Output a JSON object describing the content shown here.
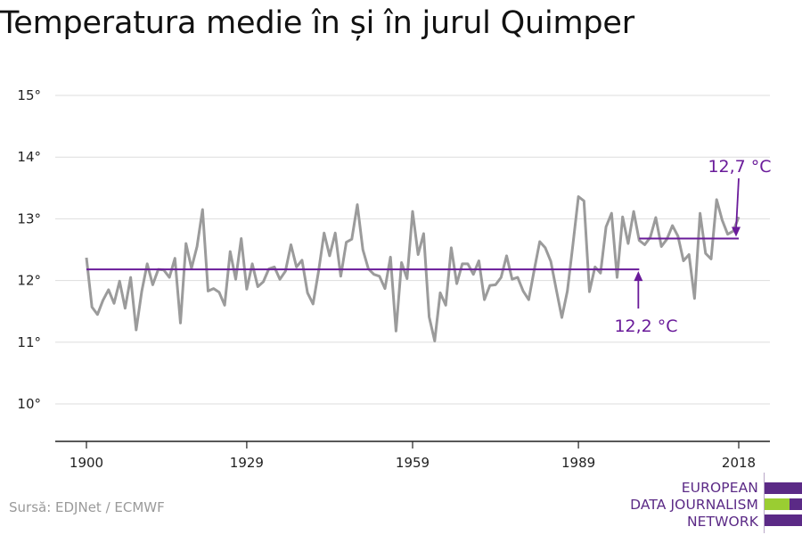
{
  "title": "Temperatura medie în și în jurul Quimper",
  "source": "Sursă: EDJNet / ECMWF",
  "logo": {
    "lines": [
      "EUROPEAN",
      "DATA JOURNALISM",
      "NETWORK"
    ],
    "colors": {
      "purple": "#5b2a86",
      "green": "#9acd32"
    }
  },
  "colors": {
    "series": "#9b9b9b",
    "average": "#6a1b9a",
    "grid": "#dddddd",
    "axis": "#222222"
  },
  "chart_data": {
    "type": "line",
    "title": "Temperatura medie în și în jurul Quimper",
    "xlabel": "",
    "ylabel": "",
    "xlim": [
      1900,
      2018
    ],
    "ylim": [
      9.4,
      15.6
    ],
    "xticks": [
      1900,
      1929,
      1959,
      1989,
      2018
    ],
    "yticks": [
      10,
      11,
      12,
      13,
      14,
      15
    ],
    "ytick_labels": [
      "10°",
      "11°",
      "12°",
      "13°",
      "14°",
      "15°"
    ],
    "grid": true,
    "series": [
      {
        "x_start": 1900,
        "values": [
          12.37,
          11.57,
          11.45,
          11.68,
          11.85,
          11.63,
          11.99,
          11.55,
          12.05,
          11.2,
          11.82,
          12.27,
          11.93,
          12.18,
          12.17,
          12.05,
          12.36,
          11.31,
          12.6,
          12.2,
          12.55,
          13.15,
          11.83,
          11.87,
          11.81,
          11.6,
          12.47,
          12.02,
          12.68,
          11.86,
          12.27,
          11.9,
          11.98,
          12.19,
          12.22,
          12.02,
          12.15,
          12.58,
          12.22,
          12.33,
          11.8,
          11.62,
          12.15,
          12.77,
          12.4,
          12.77,
          12.07,
          12.62,
          12.67,
          13.23,
          12.5,
          12.19,
          12.1,
          12.07,
          11.87,
          12.38,
          11.18,
          12.29,
          12.03,
          13.12,
          12.42,
          12.76,
          11.41,
          11.02,
          11.8,
          11.6,
          12.53,
          11.95,
          12.27,
          12.27,
          12.1,
          12.32,
          11.69,
          11.92,
          11.93,
          12.05,
          12.4,
          12.02,
          12.05,
          11.83,
          11.69,
          12.17,
          12.63,
          12.53,
          12.31,
          11.85,
          11.4,
          11.83,
          12.58,
          13.36,
          13.29,
          11.82,
          12.22,
          12.12,
          12.87,
          13.09,
          12.05,
          13.03,
          12.6,
          13.12,
          12.65,
          12.58,
          12.7,
          13.02,
          12.55,
          12.67,
          12.89,
          12.72,
          12.32,
          12.42,
          11.71,
          13.09,
          12.44,
          12.35,
          13.31,
          12.98,
          12.75,
          12.8,
          13.03
        ]
      }
    ],
    "averages": [
      {
        "label": "12,2 °C",
        "value": 12.18,
        "x_from": 1900,
        "x_to": 2000
      },
      {
        "label": "12,7 °C",
        "value": 12.68,
        "x_from": 2000,
        "x_to": 2018
      }
    ]
  }
}
